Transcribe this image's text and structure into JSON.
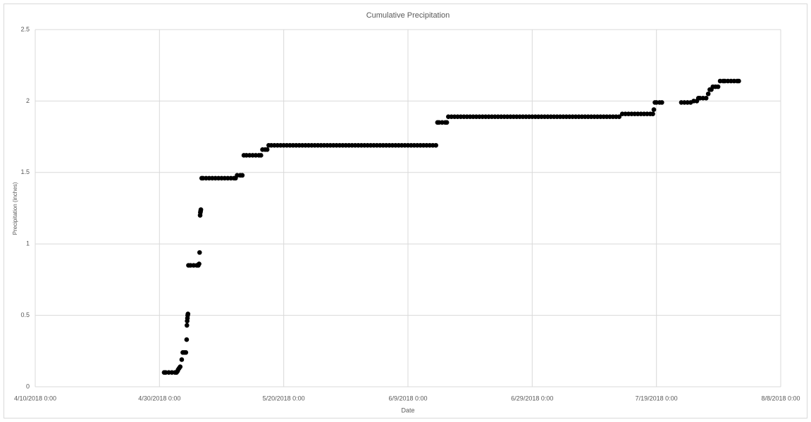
{
  "chart_data": {
    "type": "scatter",
    "title": "Cumulative Precipitation",
    "x_label": "Date",
    "y_label": "Precipitation (inches)",
    "color": "#000000",
    "grid": true,
    "xlim": [
      "4/10/2018 0:00",
      "8/8/2018 0:00"
    ],
    "xticks": [
      "4/10/2018 0:00",
      "4/30/2018 0:00",
      "5/20/2018 0:00",
      "6/9/2018 0:00",
      "6/29/2018 0:00",
      "7/19/2018 0:00",
      "8/8/2018 0:00"
    ],
    "ylim": [
      0,
      2.5
    ],
    "yticks": [
      0,
      0.5,
      1,
      1.5,
      2,
      2.5
    ],
    "x": [
      "4/30/2018 18:00",
      "5/1/2018 0:00",
      "5/1/2018 12:00",
      "5/2/2018 0:00",
      "5/2/2018 12:00",
      "5/2/2018 18:00",
      "5/2/2018 22:00",
      "5/3/2018 0:00",
      "5/3/2018 4:00",
      "5/3/2018 8:00",
      "5/3/2018 14:00",
      "5/3/2018 18:00",
      "5/4/2018 0:00",
      "5/4/2018 6:00",
      "5/4/2018 9:00",
      "5/4/2018 10:00",
      "5/4/2018 11:00",
      "5/4/2018 12:00",
      "5/4/2018 13:00",
      "5/4/2018 14:00",
      "5/4/2018 16:00",
      "5/5/2018 0:00",
      "5/5/2018 12:00",
      "5/6/2018 0:00",
      "5/6/2018 6:00",
      "5/6/2018 9:00",
      "5/6/2018 11:00",
      "5/6/2018 13:00",
      "5/6/2018 14:00",
      "5/6/2018 15:00",
      "5/6/2018 16:00",
      "5/6/2018 19:00",
      "5/7/2018 0:00",
      "5/7/2018 12:00",
      "5/8/2018 0:00",
      "5/8/2018 12:00",
      "5/9/2018 0:00",
      "5/9/2018 12:00",
      "5/10/2018 0:00",
      "5/10/2018 12:00",
      "5/11/2018 0:00",
      "5/11/2018 12:00",
      "5/12/2018 0:00",
      "5/12/2018 6:00",
      "5/12/2018 12:00",
      "5/13/2018 0:00",
      "5/13/2018 8:00",
      "5/13/2018 14:00",
      "5/14/2018 0:00",
      "5/14/2018 12:00",
      "5/15/2018 0:00",
      "5/15/2018 12:00",
      "5/16/2018 0:00",
      "5/16/2018 8:00",
      "5/16/2018 14:00",
      "5/17/2018 0:00",
      "5/17/2018 8:00",
      "5/17/2018 14:00",
      "5/18/2018 0:00",
      "5/18/2018 12:00",
      "5/19/2018 0:00",
      "5/19/2018 12:00",
      "5/20/2018 0:00",
      "5/20/2018 12:00",
      "5/21/2018 0:00",
      "5/21/2018 12:00",
      "5/22/2018 0:00",
      "5/22/2018 12:00",
      "5/23/2018 0:00",
      "5/23/2018 12:00",
      "5/24/2018 0:00",
      "5/24/2018 12:00",
      "5/25/2018 0:00",
      "5/25/2018 12:00",
      "5/26/2018 0:00",
      "5/26/2018 12:00",
      "5/27/2018 0:00",
      "5/27/2018 12:00",
      "5/28/2018 0:00",
      "5/28/2018 12:00",
      "5/29/2018 0:00",
      "5/29/2018 12:00",
      "5/30/2018 0:00",
      "5/30/2018 12:00",
      "5/31/2018 0:00",
      "5/31/2018 12:00",
      "6/1/2018 0:00",
      "6/1/2018 12:00",
      "6/2/2018 0:00",
      "6/2/2018 12:00",
      "6/3/2018 0:00",
      "6/3/2018 12:00",
      "6/4/2018 0:00",
      "6/4/2018 12:00",
      "6/5/2018 0:00",
      "6/5/2018 12:00",
      "6/6/2018 0:00",
      "6/6/2018 12:00",
      "6/7/2018 0:00",
      "6/7/2018 12:00",
      "6/8/2018 0:00",
      "6/8/2018 12:00",
      "6/9/2018 0:00",
      "6/9/2018 12:00",
      "6/10/2018 0:00",
      "6/10/2018 12:00",
      "6/11/2018 0:00",
      "6/11/2018 12:00",
      "6/12/2018 0:00",
      "6/12/2018 12:00",
      "6/13/2018 0:00",
      "6/13/2018 12:00",
      "6/13/2018 18:00",
      "6/14/2018 0:00",
      "6/14/2018 12:00",
      "6/15/2018 0:00",
      "6/15/2018 6:00",
      "6/15/2018 12:00",
      "6/16/2018 0:00",
      "6/16/2018 12:00",
      "6/17/2018 0:00",
      "6/17/2018 12:00",
      "6/18/2018 0:00",
      "6/18/2018 12:00",
      "6/19/2018 0:00",
      "6/19/2018 12:00",
      "6/20/2018 0:00",
      "6/20/2018 12:00",
      "6/21/2018 0:00",
      "6/21/2018 12:00",
      "6/22/2018 0:00",
      "6/22/2018 12:00",
      "6/23/2018 0:00",
      "6/23/2018 12:00",
      "6/24/2018 0:00",
      "6/24/2018 12:00",
      "6/25/2018 0:00",
      "6/25/2018 12:00",
      "6/26/2018 0:00",
      "6/26/2018 12:00",
      "6/27/2018 0:00",
      "6/27/2018 12:00",
      "6/28/2018 0:00",
      "6/28/2018 12:00",
      "6/29/2018 0:00",
      "6/29/2018 12:00",
      "6/30/2018 0:00",
      "6/30/2018 12:00",
      "7/1/2018 0:00",
      "7/1/2018 12:00",
      "7/2/2018 0:00",
      "7/2/2018 12:00",
      "7/3/2018 0:00",
      "7/3/2018 12:00",
      "7/4/2018 0:00",
      "7/4/2018 12:00",
      "7/5/2018 0:00",
      "7/5/2018 12:00",
      "7/6/2018 0:00",
      "7/6/2018 12:00",
      "7/7/2018 0:00",
      "7/7/2018 12:00",
      "7/8/2018 0:00",
      "7/8/2018 12:00",
      "7/9/2018 0:00",
      "7/9/2018 12:00",
      "7/10/2018 0:00",
      "7/10/2018 12:00",
      "7/11/2018 0:00",
      "7/11/2018 12:00",
      "7/12/2018 0:00",
      "7/12/2018 12:00",
      "7/13/2018 0:00",
      "7/13/2018 12:00",
      "7/14/2018 0:00",
      "7/14/2018 12:00",
      "7/15/2018 0:00",
      "7/15/2018 12:00",
      "7/16/2018 0:00",
      "7/16/2018 12:00",
      "7/17/2018 0:00",
      "7/17/2018 12:00",
      "7/18/2018 0:00",
      "7/18/2018 10:00",
      "7/18/2018 14:00",
      "7/18/2018 18:00",
      "7/19/2018 0:00",
      "7/19/2018 12:00",
      "7/19/2018 21:00",
      "7/23/2018 0:00",
      "7/23/2018 12:00",
      "7/24/2018 0:00",
      "7/24/2018 12:00",
      "7/25/2018 0:00",
      "7/25/2018 12:00",
      "7/25/2018 18:00",
      "7/26/2018 0:00",
      "7/26/2018 12:00",
      "7/27/2018 0:00",
      "7/27/2018 8:00",
      "7/27/2018 14:00",
      "7/27/2018 20:00",
      "7/28/2018 2:00",
      "7/28/2018 12:00",
      "7/28/2018 22:00",
      "7/29/2018 6:00",
      "7/29/2018 18:00",
      "7/30/2018 0:00",
      "7/30/2018 12:00",
      "7/31/2018 0:00",
      "7/31/2018 12:00",
      "8/1/2018 0:00",
      "8/1/2018 6:00"
    ],
    "values": [
      0.1,
      0.1,
      0.1,
      0.1,
      0.1,
      0.1,
      0.11,
      0.12,
      0.13,
      0.14,
      0.19,
      0.24,
      0.24,
      0.24,
      0.33,
      0.43,
      0.46,
      0.48,
      0.5,
      0.51,
      0.85,
      0.85,
      0.85,
      0.85,
      0.85,
      0.86,
      0.94,
      1.2,
      1.22,
      1.23,
      1.24,
      1.46,
      1.46,
      1.46,
      1.46,
      1.46,
      1.46,
      1.46,
      1.46,
      1.46,
      1.46,
      1.46,
      1.46,
      1.46,
      1.48,
      1.48,
      1.48,
      1.62,
      1.62,
      1.62,
      1.62,
      1.62,
      1.62,
      1.62,
      1.66,
      1.66,
      1.66,
      1.69,
      1.69,
      1.69,
      1.69,
      1.69,
      1.69,
      1.69,
      1.69,
      1.69,
      1.69,
      1.69,
      1.69,
      1.69,
      1.69,
      1.69,
      1.69,
      1.69,
      1.69,
      1.69,
      1.69,
      1.69,
      1.69,
      1.69,
      1.69,
      1.69,
      1.69,
      1.69,
      1.69,
      1.69,
      1.69,
      1.69,
      1.69,
      1.69,
      1.69,
      1.69,
      1.69,
      1.69,
      1.69,
      1.69,
      1.69,
      1.69,
      1.69,
      1.69,
      1.69,
      1.69,
      1.69,
      1.69,
      1.69,
      1.69,
      1.69,
      1.69,
      1.69,
      1.69,
      1.69,
      1.69,
      1.85,
      1.85,
      1.85,
      1.85,
      1.85,
      1.89,
      1.89,
      1.89,
      1.89,
      1.89,
      1.89,
      1.89,
      1.89,
      1.89,
      1.89,
      1.89,
      1.89,
      1.89,
      1.89,
      1.89,
      1.89,
      1.89,
      1.89,
      1.89,
      1.89,
      1.89,
      1.89,
      1.89,
      1.89,
      1.89,
      1.89,
      1.89,
      1.89,
      1.89,
      1.89,
      1.89,
      1.89,
      1.89,
      1.89,
      1.89,
      1.89,
      1.89,
      1.89,
      1.89,
      1.89,
      1.89,
      1.89,
      1.89,
      1.89,
      1.89,
      1.89,
      1.89,
      1.89,
      1.89,
      1.89,
      1.89,
      1.89,
      1.89,
      1.89,
      1.89,
      1.89,
      1.91,
      1.91,
      1.91,
      1.91,
      1.91,
      1.91,
      1.91,
      1.91,
      1.91,
      1.91,
      1.91,
      1.94,
      1.99,
      1.99,
      1.99,
      1.99,
      1.99,
      1.99,
      1.99,
      1.99,
      2,
      2,
      2.02,
      2.02,
      2.02,
      2.02,
      2.05,
      2.08,
      2.08,
      2.1,
      2.1,
      2.1,
      2.14,
      2.14,
      2.14,
      2.14,
      2.14,
      2.14,
      2.14,
      2.14
    ]
  }
}
